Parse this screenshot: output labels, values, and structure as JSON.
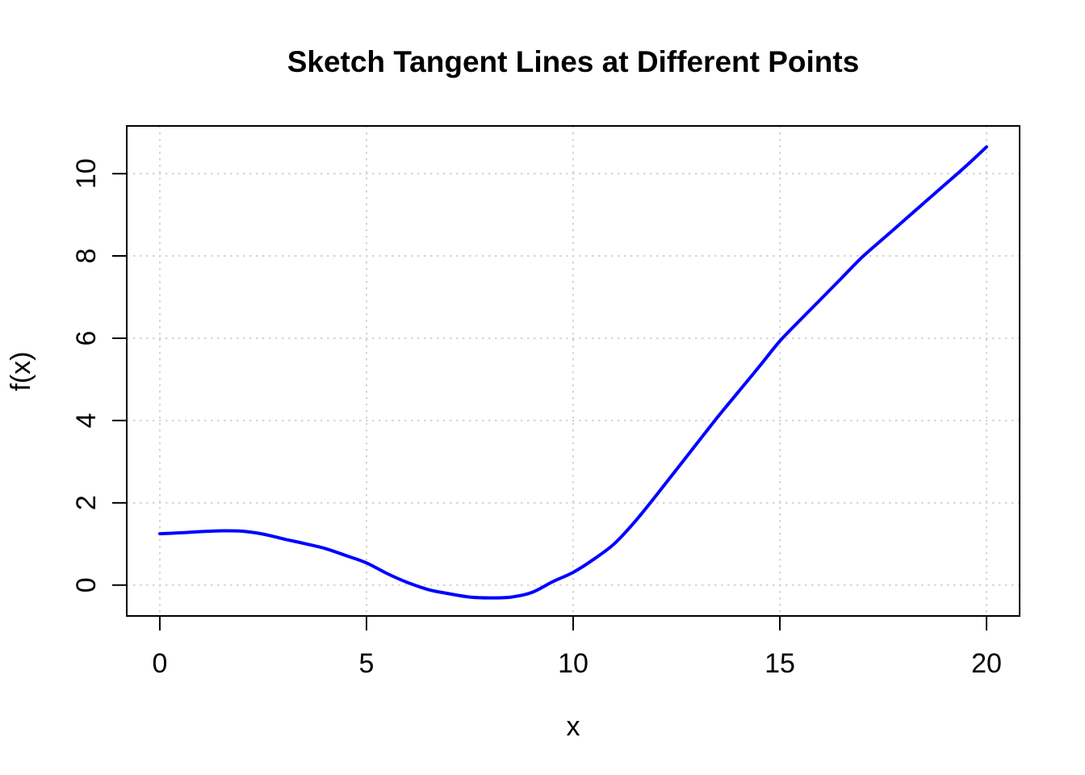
{
  "figure": {
    "background": "#FFFFFF",
    "text_color": "#000000"
  },
  "chart_data": {
    "type": "line",
    "title": "Sketch Tangent Lines at Different Points",
    "xlabel": "x",
    "ylabel": "f(x)",
    "xlim": [
      -0.8,
      20.8
    ],
    "ylim": [
      -0.75,
      11.16
    ],
    "x_ticks": [
      0,
      5,
      10,
      15,
      20
    ],
    "y_ticks": [
      0,
      2,
      4,
      6,
      8,
      10
    ],
    "grid": true,
    "grid_color": "#D3D3D3",
    "grid_style": "dotted",
    "axis_color": "#000000",
    "legend_position": "none",
    "series": [
      {
        "name": "f(x)",
        "color": "#0000FF",
        "line_width": 4,
        "x": [
          0,
          0.5,
          1,
          1.5,
          2,
          2.5,
          3,
          3.5,
          4,
          4.5,
          5,
          5.5,
          6,
          6.5,
          7,
          7.5,
          8,
          8.5,
          9,
          9.5,
          10,
          10.5,
          11,
          11.5,
          12,
          12.5,
          13,
          13.5,
          14,
          14.5,
          15,
          15.5,
          16,
          16.5,
          17,
          17.5,
          18,
          18.5,
          19,
          19.5,
          20
        ],
        "y": [
          1.25,
          1.27,
          1.3,
          1.32,
          1.31,
          1.24,
          1.12,
          1.01,
          0.89,
          0.72,
          0.54,
          0.28,
          0.06,
          -0.11,
          -0.21,
          -0.29,
          -0.31,
          -0.29,
          -0.18,
          0.08,
          0.31,
          0.63,
          1.01,
          1.55,
          2.17,
          2.81,
          3.45,
          4.09,
          4.7,
          5.31,
          5.93,
          6.45,
          6.96,
          7.47,
          7.98,
          8.42,
          8.86,
          9.3,
          9.74,
          10.18,
          10.65
        ]
      }
    ]
  }
}
